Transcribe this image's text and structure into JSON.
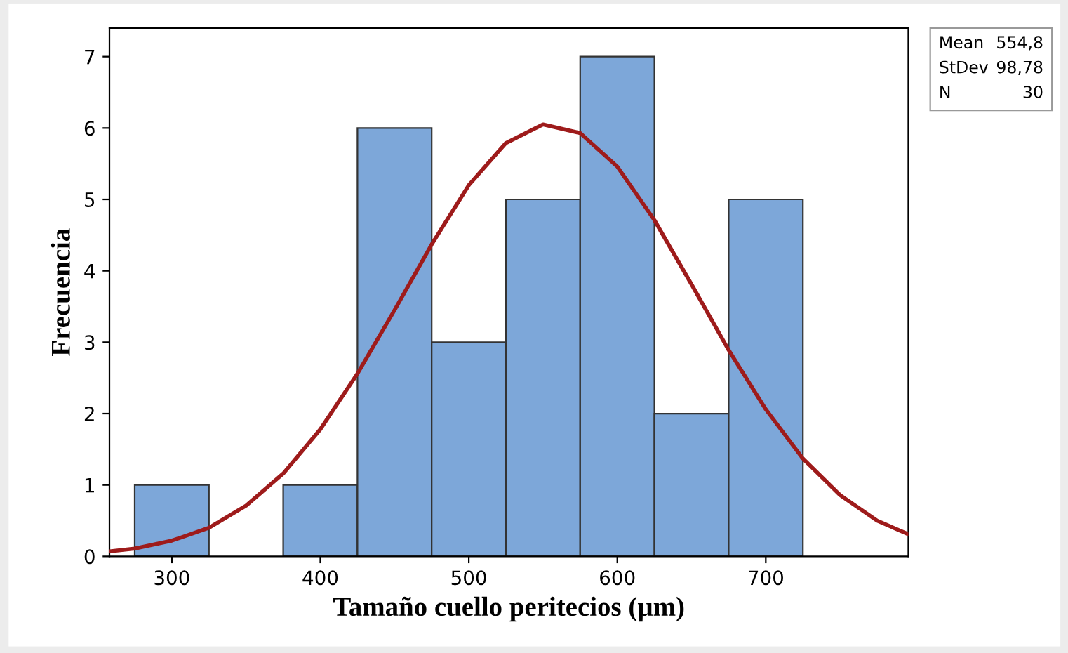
{
  "chart_data": {
    "type": "histogram",
    "xlabel": "Tamaño cuello peritecios (µm)",
    "ylabel": "Frecuencia",
    "bins": [
      275,
      325,
      375,
      425,
      475,
      525,
      575,
      625,
      675,
      725
    ],
    "values": [
      1,
      0,
      1,
      6,
      3,
      5,
      7,
      2,
      5
    ],
    "color": "#7da7d9",
    "series": [
      {
        "type": "line",
        "color": "#9e1b1b",
        "x": [
          258,
          275,
          300,
          325,
          350,
          375,
          400,
          425,
          450,
          475,
          500,
          525,
          550,
          575,
          600,
          625,
          650,
          675,
          700,
          725,
          750,
          775,
          796
        ],
        "values": [
          0.07,
          0.11,
          0.22,
          0.4,
          0.71,
          1.16,
          1.78,
          2.56,
          3.45,
          4.37,
          5.2,
          5.79,
          6.05,
          5.93,
          5.46,
          4.71,
          3.81,
          2.89,
          2.06,
          1.37,
          0.86,
          0.5,
          0.31
        ]
      }
    ],
    "xlim": [
      258,
      796
    ],
    "ylim": [
      0,
      7.4
    ],
    "xticks": [
      300,
      400,
      500,
      600,
      700
    ],
    "yticks": [
      0,
      1,
      2,
      3,
      4,
      5,
      6,
      7
    ],
    "grid": false,
    "annotations": [
      "Mean 554,8",
      "StDev 98,78",
      "N 30"
    ]
  }
}
